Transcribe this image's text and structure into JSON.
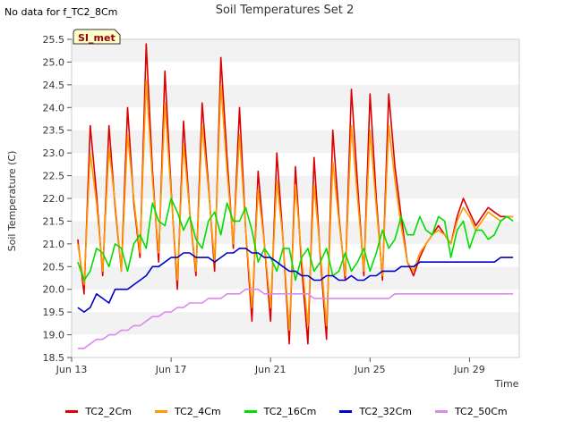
{
  "no_data_note": "No data for f_TC2_8Cm",
  "badge": "SI_met",
  "chart_data": {
    "type": "line",
    "title": "Soil Temperatures Set 2",
    "xlabel": "Time",
    "ylabel": "Soil Temperature (C)",
    "ylim": [
      18.5,
      25.5
    ],
    "yticks": [
      "18.5",
      "19.0",
      "19.5",
      "20.0",
      "20.5",
      "21.0",
      "21.5",
      "22.0",
      "22.5",
      "23.0",
      "23.5",
      "24.0",
      "24.5",
      "25.0",
      "25.5"
    ],
    "xlim": [
      "Jun 13",
      "Jun 31"
    ],
    "xticks": [
      "Jun 13",
      "Jun 17",
      "Jun 21",
      "Jun 25",
      "Jun 29"
    ],
    "grid": "horizontal bands",
    "legend_position": "bottom",
    "x": [
      "Jun 13 06:00",
      "Jun 13 12:00",
      "Jun 13 18:00",
      "Jun 14 00:00",
      "Jun 14 06:00",
      "Jun 14 12:00",
      "Jun 14 18:00",
      "Jun 15 00:00",
      "Jun 15 06:00",
      "Jun 15 12:00",
      "Jun 15 18:00",
      "Jun 16 00:00",
      "Jun 16 06:00",
      "Jun 16 12:00",
      "Jun 16 18:00",
      "Jun 17 00:00",
      "Jun 17 06:00",
      "Jun 17 12:00",
      "Jun 17 18:00",
      "Jun 18 00:00",
      "Jun 18 06:00",
      "Jun 18 12:00",
      "Jun 18 18:00",
      "Jun 19 00:00",
      "Jun 19 06:00",
      "Jun 19 12:00",
      "Jun 19 18:00",
      "Jun 20 00:00",
      "Jun 20 06:00",
      "Jun 20 12:00",
      "Jun 20 18:00",
      "Jun 21 00:00",
      "Jun 21 06:00",
      "Jun 21 12:00",
      "Jun 21 18:00",
      "Jun 22 00:00",
      "Jun 22 06:00",
      "Jun 22 12:00",
      "Jun 22 18:00",
      "Jun 23 00:00",
      "Jun 23 06:00",
      "Jun 23 12:00",
      "Jun 23 18:00",
      "Jun 24 00:00",
      "Jun 24 06:00",
      "Jun 24 12:00",
      "Jun 24 18:00",
      "Jun 25 00:00",
      "Jun 25 06:00",
      "Jun 25 12:00",
      "Jun 25 18:00",
      "Jun 26 00:00",
      "Jun 26 06:00",
      "Jun 26 12:00",
      "Jun 26 18:00",
      "Jun 27 00:00",
      "Jun 27 06:00",
      "Jun 27 12:00",
      "Jun 27 18:00",
      "Jun 28 00:00",
      "Jun 28 06:00",
      "Jun 28 12:00",
      "Jun 28 18:00",
      "Jun 29 00:00",
      "Jun 29 06:00",
      "Jun 29 12:00",
      "Jun 29 18:00",
      "Jun 30 00:00",
      "Jun 30 06:00",
      "Jun 30 12:00",
      "Jun 30 18:00"
    ],
    "series": [
      {
        "name": "TC2_2Cm",
        "color": "#dd0000",
        "values": [
          21.1,
          19.9,
          23.6,
          22.1,
          20.3,
          23.6,
          21.8,
          20.4,
          24.0,
          21.9,
          20.7,
          25.4,
          22.6,
          20.6,
          24.8,
          22.2,
          20.0,
          23.7,
          21.7,
          20.3,
          24.1,
          22.3,
          20.4,
          25.1,
          22.9,
          20.9,
          24.0,
          21.3,
          19.3,
          22.6,
          21.0,
          19.3,
          23.0,
          21.1,
          18.8,
          22.7,
          20.5,
          18.8,
          22.9,
          20.7,
          18.9,
          23.5,
          21.6,
          20.2,
          24.4,
          22.3,
          20.3,
          24.3,
          22.0,
          20.2,
          24.3,
          22.7,
          21.6,
          20.6,
          20.3,
          20.7,
          21.0,
          21.2,
          21.4,
          21.2,
          21.0,
          21.6,
          22.0,
          21.7,
          21.4,
          21.6,
          21.8,
          21.7,
          21.6,
          21.6,
          21.6
        ]
      },
      {
        "name": "TC2_4Cm",
        "color": "#ff9900",
        "values": [
          21.0,
          20.1,
          23.0,
          21.9,
          20.4,
          23.1,
          21.9,
          20.4,
          23.4,
          22.0,
          20.8,
          24.6,
          22.4,
          20.8,
          24.1,
          22.1,
          20.2,
          23.2,
          21.7,
          20.4,
          23.6,
          22.2,
          20.6,
          24.5,
          22.6,
          21.0,
          23.4,
          21.3,
          19.6,
          22.2,
          21.0,
          19.6,
          22.4,
          21.1,
          19.1,
          22.3,
          20.7,
          19.2,
          22.3,
          20.8,
          19.2,
          22.8,
          21.5,
          20.3,
          23.6,
          22.0,
          20.4,
          23.5,
          21.8,
          20.3,
          23.6,
          22.4,
          21.4,
          20.6,
          20.4,
          20.8,
          21.0,
          21.2,
          21.3,
          21.2,
          21.0,
          21.5,
          21.8,
          21.6,
          21.3,
          21.5,
          21.7,
          21.6,
          21.5,
          21.6,
          21.6
        ]
      },
      {
        "name": "TC2_16Cm",
        "color": "#00dd00",
        "values": [
          20.6,
          20.2,
          20.4,
          20.9,
          20.8,
          20.5,
          21.0,
          20.9,
          20.4,
          21.0,
          21.2,
          20.9,
          21.9,
          21.5,
          21.4,
          22.0,
          21.7,
          21.3,
          21.6,
          21.1,
          20.9,
          21.5,
          21.7,
          21.2,
          21.9,
          21.5,
          21.5,
          21.8,
          21.3,
          20.6,
          20.9,
          20.7,
          20.4,
          20.9,
          20.9,
          20.2,
          20.7,
          20.9,
          20.4,
          20.6,
          20.9,
          20.3,
          20.4,
          20.8,
          20.4,
          20.6,
          20.9,
          20.4,
          20.8,
          21.3,
          20.9,
          21.1,
          21.6,
          21.2,
          21.2,
          21.6,
          21.3,
          21.2,
          21.6,
          21.5,
          20.7,
          21.3,
          21.5,
          20.9,
          21.3,
          21.3,
          21.1,
          21.2,
          21.5,
          21.6,
          21.5
        ]
      },
      {
        "name": "TC2_32Cm",
        "color": "#0000cc",
        "values": [
          19.6,
          19.5,
          19.6,
          19.9,
          19.8,
          19.7,
          20.0,
          20.0,
          20.0,
          20.1,
          20.2,
          20.3,
          20.5,
          20.5,
          20.6,
          20.7,
          20.7,
          20.8,
          20.8,
          20.7,
          20.7,
          20.7,
          20.6,
          20.7,
          20.8,
          20.8,
          20.9,
          20.9,
          20.8,
          20.8,
          20.7,
          20.7,
          20.6,
          20.5,
          20.4,
          20.4,
          20.3,
          20.3,
          20.2,
          20.2,
          20.3,
          20.3,
          20.2,
          20.2,
          20.3,
          20.2,
          20.2,
          20.3,
          20.3,
          20.4,
          20.4,
          20.4,
          20.5,
          20.5,
          20.5,
          20.6,
          20.6,
          20.6,
          20.6,
          20.6,
          20.6,
          20.6,
          20.6,
          20.6,
          20.6,
          20.6,
          20.6,
          20.6,
          20.7,
          20.7,
          20.7
        ]
      },
      {
        "name": "TC2_50Cm",
        "color": "#dd88ee",
        "values": [
          18.7,
          18.7,
          18.8,
          18.9,
          18.9,
          19.0,
          19.0,
          19.1,
          19.1,
          19.2,
          19.2,
          19.3,
          19.4,
          19.4,
          19.5,
          19.5,
          19.6,
          19.6,
          19.7,
          19.7,
          19.7,
          19.8,
          19.8,
          19.8,
          19.9,
          19.9,
          19.9,
          20.0,
          20.0,
          20.0,
          19.9,
          19.9,
          19.9,
          19.9,
          19.9,
          19.9,
          19.9,
          19.9,
          19.8,
          19.8,
          19.8,
          19.8,
          19.8,
          19.8,
          19.8,
          19.8,
          19.8,
          19.8,
          19.8,
          19.8,
          19.8,
          19.9,
          19.9,
          19.9,
          19.9,
          19.9,
          19.9,
          19.9,
          19.9,
          19.9,
          19.9,
          19.9,
          19.9,
          19.9,
          19.9,
          19.9,
          19.9,
          19.9,
          19.9,
          19.9,
          19.9
        ]
      }
    ]
  }
}
